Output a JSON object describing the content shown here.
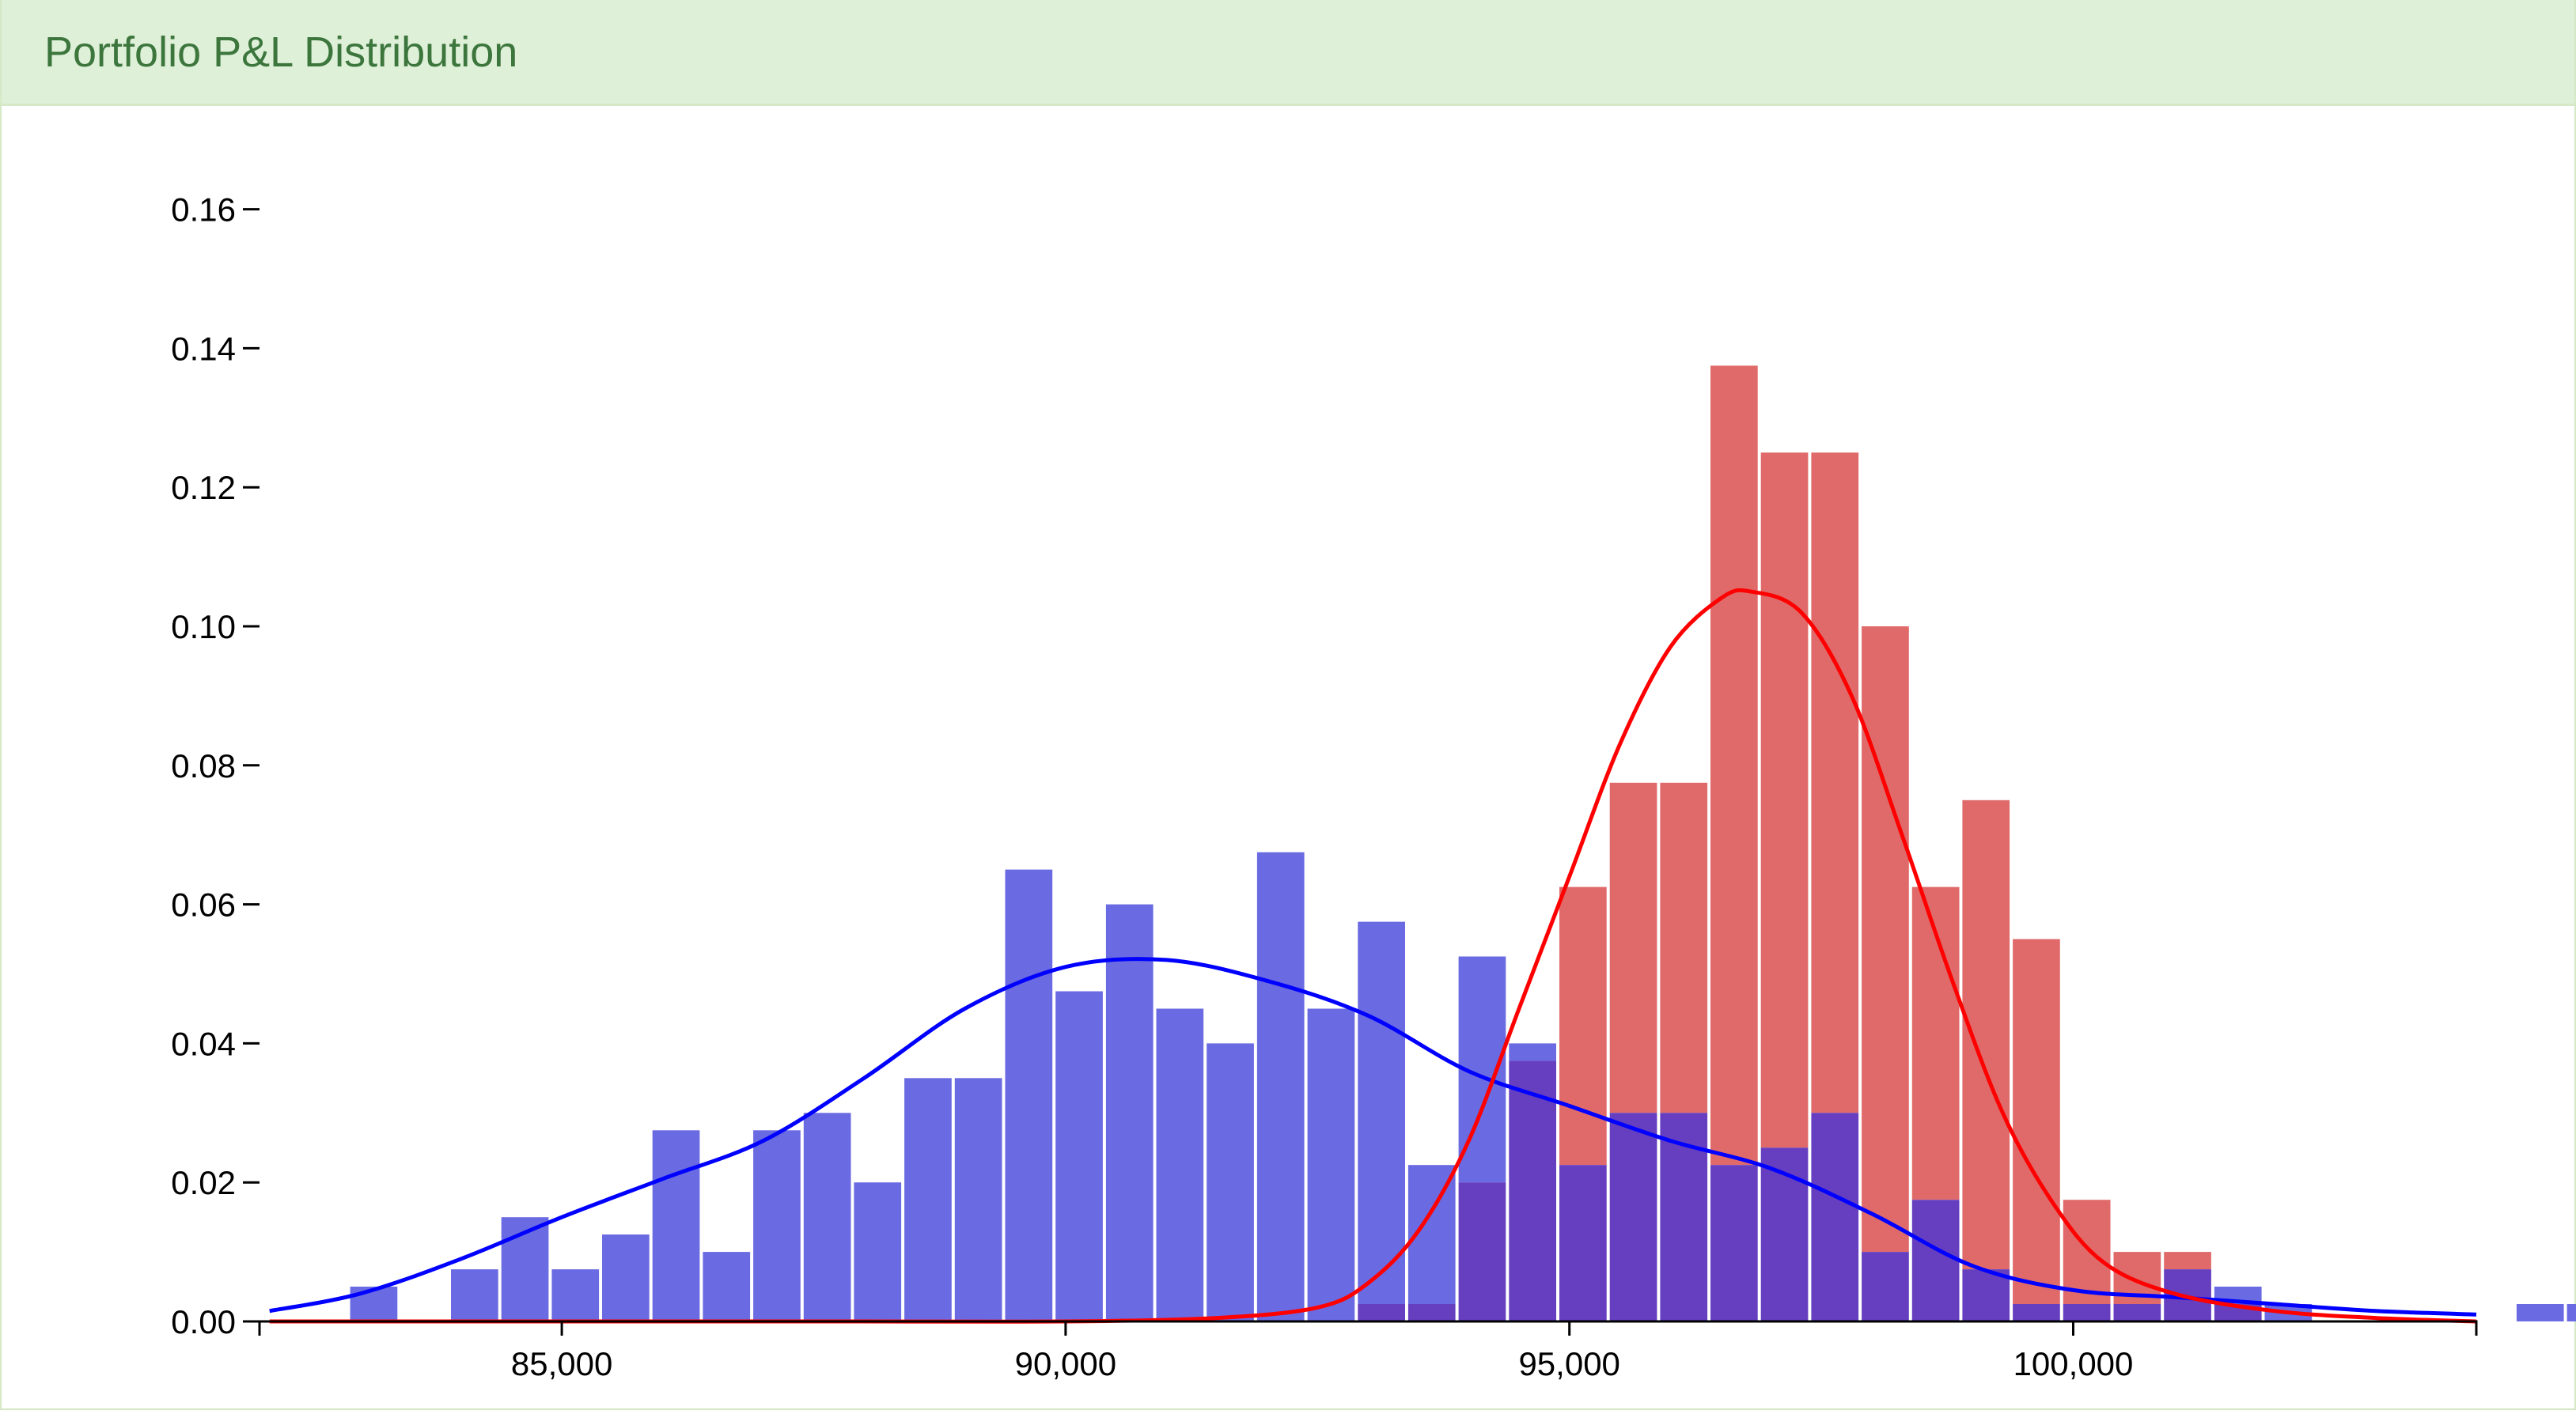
{
  "panel": {
    "title": "Portfolio P&L Distribution"
  },
  "colors": {
    "heading_bg": "#dff0d8",
    "heading_text": "#3c763d",
    "blue_bar": "#6a6ae2",
    "red_bar": "#e06a6a",
    "overlap_bar": "#653fc0",
    "blue_line": "#0000ff",
    "red_line": "#ff0000"
  },
  "chart_data": {
    "type": "histogram",
    "grid": false,
    "legend": "none",
    "xlim": [
      82000,
      104000
    ],
    "ylim": [
      0,
      0.17
    ],
    "x_ticks": [
      85000,
      90000,
      95000,
      100000
    ],
    "x_tick_labels": [
      "85,000",
      "90,000",
      "95,000",
      "100,000"
    ],
    "y_ticks": [
      0,
      0.02,
      0.04,
      0.06,
      0.08,
      0.1,
      0.12,
      0.14,
      0.16
    ],
    "y_tick_labels": [
      "0.00",
      "0.02",
      "0.04",
      "0.06",
      "0.08",
      "0.10",
      "0.12",
      "0.14",
      "0.16"
    ],
    "bin_start": 82400,
    "bin_width": 500,
    "series": [
      {
        "values": [
          0,
          0.005,
          0,
          0.0075,
          0.015,
          0.0075,
          0.0125,
          0.0275,
          0.01,
          0.0275,
          0.03,
          0.02,
          0.035,
          0.035,
          0.065,
          0.0475,
          0.06,
          0.045,
          0.04,
          0.0675,
          0.045,
          0.0575,
          0.0225,
          0.0525,
          0.04,
          0.0225,
          0.03,
          0.03,
          0.0225,
          0.025,
          0.03,
          0.01,
          0.0175,
          0.0075,
          0.0025,
          0.0025,
          0.0025,
          0.0075,
          0.005,
          0.0025,
          0,
          0,
          0,
          0,
          0.0025,
          0.0025
        ]
      },
      {
        "values": [
          0,
          0,
          0,
          0,
          0,
          0,
          0,
          0,
          0,
          0,
          0,
          0,
          0,
          0,
          0,
          0,
          0,
          0,
          0,
          0,
          0,
          0.0025,
          0.0025,
          0.02,
          0.0375,
          0.0625,
          0.0775,
          0.0775,
          0.1375,
          0.125,
          0.125,
          0.1,
          0.0625,
          0.075,
          0.055,
          0.0175,
          0.01,
          0.01,
          0.0025,
          0,
          0,
          0,
          0,
          0,
          0,
          0
        ]
      }
    ],
    "density_curves": [
      {
        "x": [
          82100,
          83000,
          84000,
          85000,
          86000,
          87000,
          88000,
          89000,
          90000,
          91000,
          92000,
          93000,
          94000,
          95000,
          96000,
          97000,
          98000,
          99000,
          100000,
          101000,
          102000,
          103000,
          104000
        ],
        "y": [
          0.0015,
          0.004,
          0.009,
          0.015,
          0.0205,
          0.026,
          0.035,
          0.045,
          0.051,
          0.052,
          0.049,
          0.044,
          0.036,
          0.031,
          0.026,
          0.022,
          0.0155,
          0.008,
          0.0045,
          0.0035,
          0.0025,
          0.0015,
          0.001
        ]
      },
      {
        "x": [
          82100,
          88000,
          90000,
          91500,
          92500,
          93000,
          93500,
          94000,
          94500,
          95000,
          95500,
          96000,
          96500,
          96800,
          97300,
          97800,
          98300,
          98800,
          99300,
          99800,
          100300,
          101000,
          102000,
          103000,
          104000
        ],
        "y": [
          0,
          0,
          0,
          0.0005,
          0.002,
          0.0055,
          0.013,
          0.026,
          0.045,
          0.064,
          0.083,
          0.097,
          0.104,
          0.105,
          0.102,
          0.09,
          0.07,
          0.049,
          0.03,
          0.017,
          0.0085,
          0.004,
          0.0015,
          0.0005,
          0
        ]
      }
    ]
  }
}
